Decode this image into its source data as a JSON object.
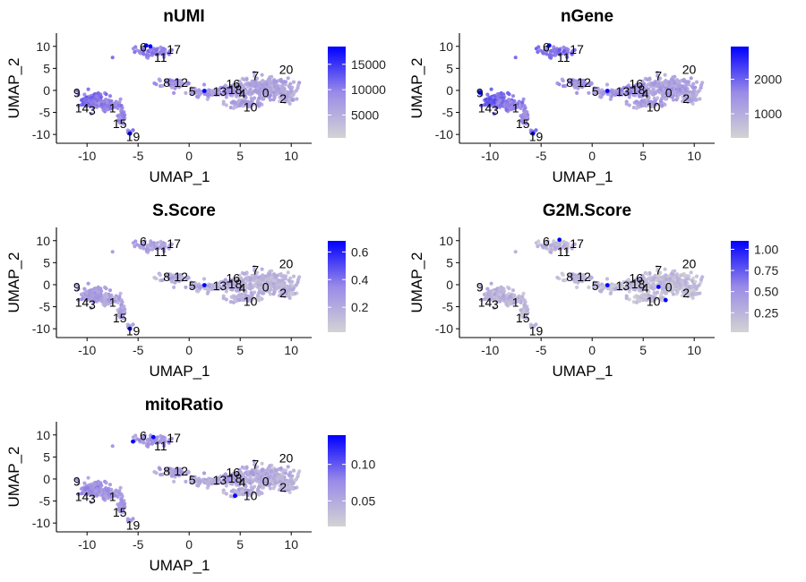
{
  "chart_data": {
    "type": "scatter",
    "xlabel": "UMAP_1",
    "ylabel": "UMAP_2",
    "xlim": [
      -13,
      12
    ],
    "ylim": [
      -12,
      13
    ],
    "x_ticks": [
      -10,
      -5,
      0,
      5,
      10
    ],
    "y_ticks": [
      10,
      5,
      0,
      -5,
      -10
    ],
    "colors": {
      "low": "#d3d3d3",
      "high": "#0000ff"
    },
    "clusters": [
      {
        "label": "0",
        "x": 7.5,
        "y": -0.5
      },
      {
        "label": "1",
        "x": -7.5,
        "y": -4
      },
      {
        "label": "2",
        "x": 9.2,
        "y": -1.8
      },
      {
        "label": "3",
        "x": -9.5,
        "y": -4.5
      },
      {
        "label": "4",
        "x": 5.2,
        "y": -0.7
      },
      {
        "label": "5",
        "x": 0.3,
        "y": -0.2
      },
      {
        "label": "6",
        "x": -4.5,
        "y": 9.8
      },
      {
        "label": "7",
        "x": 6.5,
        "y": 3.3
      },
      {
        "label": "8",
        "x": -2.2,
        "y": 1.8
      },
      {
        "label": "9",
        "x": -11,
        "y": -0.5
      },
      {
        "label": "10",
        "x": 6,
        "y": -3.8
      },
      {
        "label": "11",
        "x": -2.8,
        "y": 7.5
      },
      {
        "label": "12",
        "x": -0.8,
        "y": 1.8
      },
      {
        "label": "13",
        "x": 3,
        "y": -0.2
      },
      {
        "label": "14",
        "x": -10.5,
        "y": -4
      },
      {
        "label": "15",
        "x": -6.8,
        "y": -7.5
      },
      {
        "label": "16",
        "x": 4.3,
        "y": 1.5
      },
      {
        "label": "17",
        "x": -1.5,
        "y": 9.3
      },
      {
        "label": "18",
        "x": 4.5,
        "y": 0.2
      },
      {
        "label": "19",
        "x": -5.5,
        "y": -10.5
      },
      {
        "label": "20",
        "x": 9.5,
        "y": 4.8
      }
    ],
    "panels": [
      {
        "title": "nUMI",
        "legend_ticks": [
          "15000",
          "10000",
          "5000"
        ],
        "legend_values": [
          15000,
          10000,
          5000
        ],
        "range": [
          500,
          18500
        ],
        "highlights": [
          [
            -4.2,
            10.2
          ],
          [
            -3.8,
            10
          ],
          [
            1.5,
            -0.1
          ],
          [
            -5.8,
            -9.8
          ]
        ]
      },
      {
        "title": "nGene",
        "legend_ticks": [
          "2000",
          "1000"
        ],
        "legend_values": [
          2000,
          1000
        ],
        "range": [
          300,
          2950
        ],
        "highlights": [
          [
            -4.2,
            10.2
          ],
          [
            1.5,
            -0.1
          ],
          [
            -5.8,
            -9.8
          ],
          [
            -11,
            -0.5
          ]
        ]
      },
      {
        "title": "S.Score",
        "legend_ticks": [
          "0.6",
          "0.4",
          "0.2"
        ],
        "legend_values": [
          0.6,
          0.4,
          0.2
        ],
        "range": [
          0.02,
          0.68
        ],
        "highlights": [
          [
            1.5,
            -0.1
          ],
          [
            -5.8,
            -10
          ]
        ]
      },
      {
        "title": "G2M.Score",
        "legend_ticks": [
          "1.00",
          "0.75",
          "0.50",
          "0.25"
        ],
        "legend_values": [
          1.0,
          0.75,
          0.5,
          0.25
        ],
        "range": [
          0.02,
          1.1
        ],
        "highlights": [
          [
            -3.2,
            10.2
          ],
          [
            1.5,
            -0.1
          ],
          [
            6.5,
            -0.5
          ],
          [
            7.2,
            -3.5
          ]
        ]
      },
      {
        "title": "mitoRatio",
        "legend_ticks": [
          "0.10",
          "0.05"
        ],
        "legend_values": [
          0.1,
          0.05
        ],
        "range": [
          0.015,
          0.14
        ],
        "highlights": [
          [
            -5.5,
            8.5
          ],
          [
            4.5,
            -3.8
          ],
          [
            -3.5,
            9.5
          ]
        ]
      }
    ]
  }
}
